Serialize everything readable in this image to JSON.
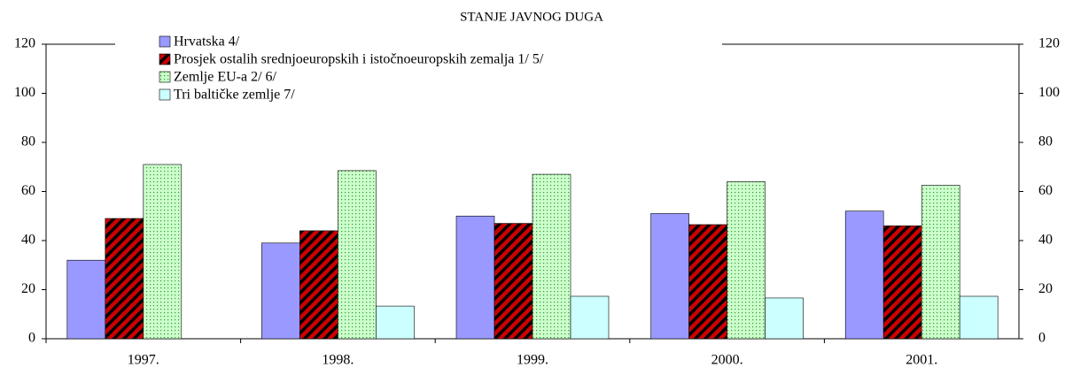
{
  "chart_data": {
    "type": "bar",
    "title": "STANJE JAVNOG DUGA",
    "categories": [
      "1997.",
      "1998.",
      "1999.",
      "2000.",
      "2001."
    ],
    "series": [
      {
        "name": "Hrvatska 4/",
        "color": "#9999ff",
        "values": [
          32,
          39,
          50,
          51,
          52
        ]
      },
      {
        "name": "Prosjek ostalih srednjoeuropskih i istočnoeuropskih zemalja 1/ 5/",
        "color": "#cc0000",
        "values": [
          49,
          44,
          47,
          46.5,
          46
        ]
      },
      {
        "name": "Zemlje EU-a 2/ 6/",
        "color": "#ccffcc",
        "values": [
          71,
          68.5,
          67,
          64,
          62.5
        ]
      },
      {
        "name": "Tri baltičke zemlje 7/",
        "color": "#ccffff",
        "values": [
          null,
          13.3,
          17.3,
          16.6,
          17.3
        ]
      }
    ],
    "ylim": [
      0,
      120
    ],
    "yticks": [
      0,
      20,
      40,
      60,
      80,
      100,
      120
    ],
    "y2lim": [
      0,
      120
    ],
    "y2ticks": [
      0,
      20,
      40,
      60,
      80,
      100,
      120
    ],
    "legend": "top-left",
    "grid": false
  }
}
